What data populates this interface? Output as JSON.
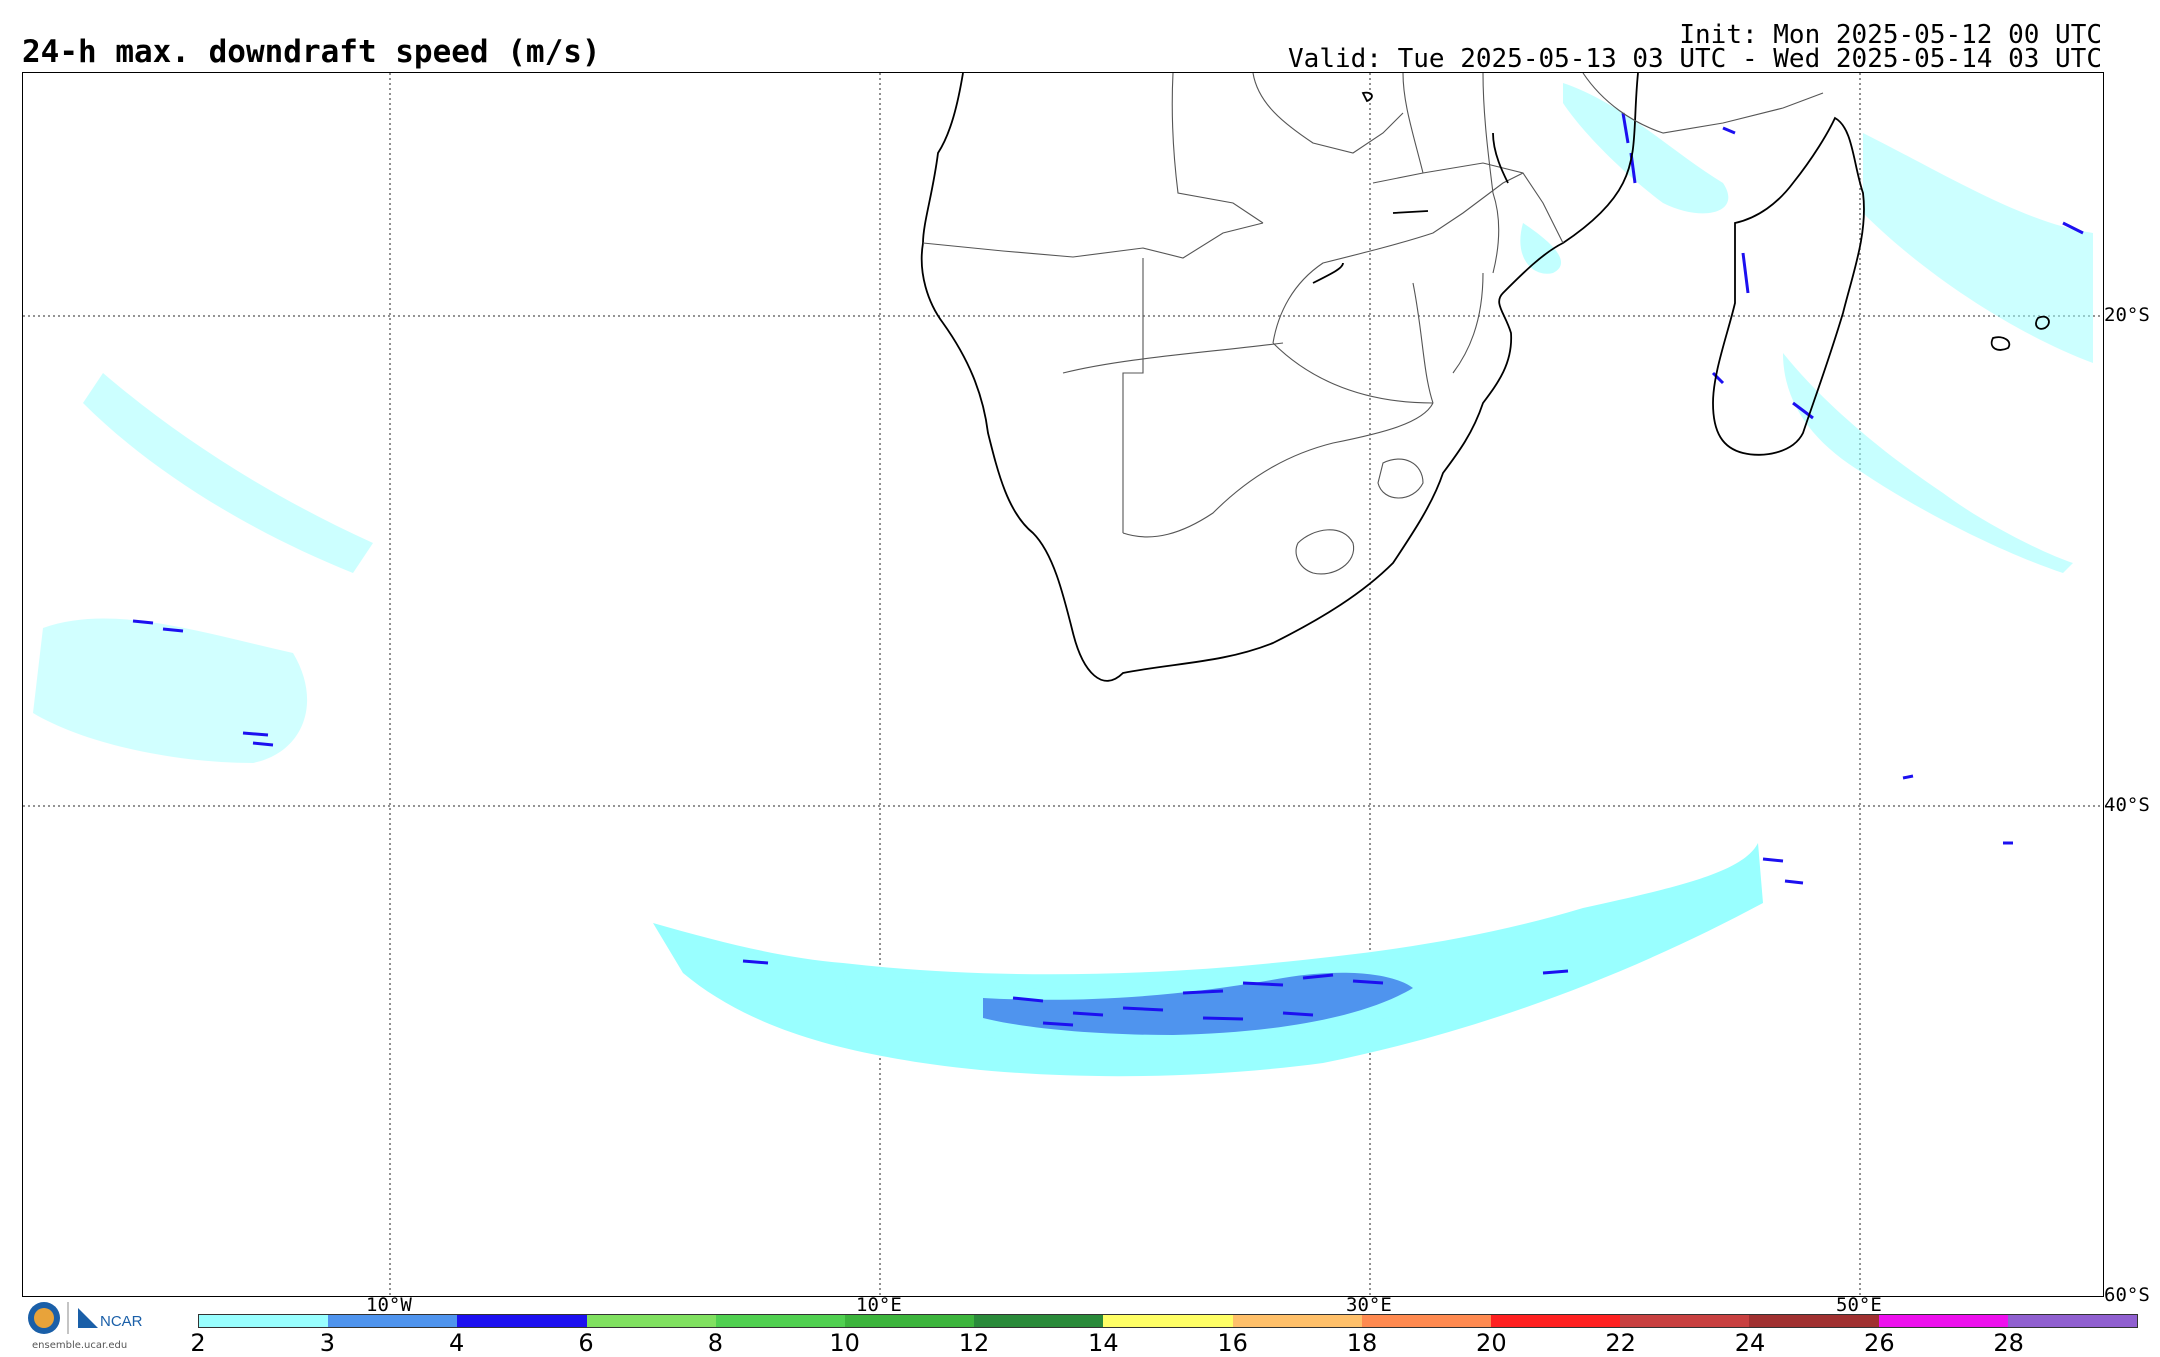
{
  "title": "24-h max. downdraft speed (m/s)",
  "init": "Init: Mon 2025-05-12 00 UTC",
  "valid": "Valid: Tue 2025-05-13 03 UTC - Wed 2025-05-14 03 UTC",
  "lat_labels": [
    "20°S",
    "40°S",
    "60°S"
  ],
  "lon_labels": [
    "10°W",
    "10°E",
    "30°E",
    "50°E"
  ],
  "logo_text": "NCAR",
  "logo_site": "ensemble.ucar.edu",
  "colorbar": {
    "colors": [
      "#99ffff",
      "#4f94ee",
      "#1c10f0",
      "#80e060",
      "#50d050",
      "#3cb43c",
      "#2a8a3a",
      "#ffff66",
      "#ffc06a",
      "#ff8a50",
      "#ff2020",
      "#c84040",
      "#a03030",
      "#ee10ee",
      "#9060d0"
    ],
    "tick_labels": [
      "2",
      "3",
      "4",
      "6",
      "8",
      "10",
      "12",
      "14",
      "16",
      "18",
      "20",
      "22",
      "24",
      "26",
      "28"
    ]
  },
  "colors": {
    "light": "#99ffff",
    "medium": "#4f94ee",
    "dark": "#1c10f0"
  }
}
